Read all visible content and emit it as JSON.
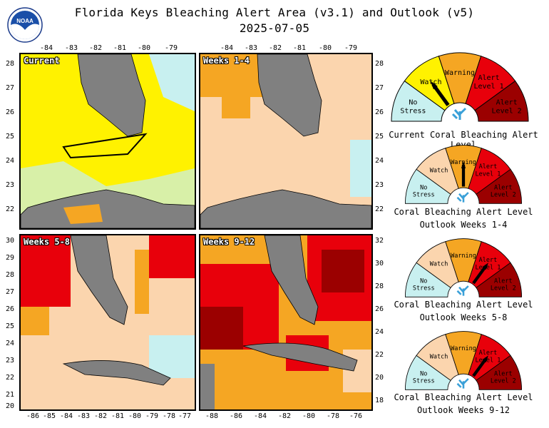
{
  "header": {
    "title": "Florida Keys Bleaching Alert Area (v3.1) and Outlook (v5)",
    "date": "2025-07-05",
    "logo_text": "NOAA"
  },
  "maps": {
    "current": {
      "label": "Current"
    },
    "w1_4": {
      "label": "Weeks 1-4"
    },
    "w5_8": {
      "label": "Weeks 5-8"
    },
    "w9_12": {
      "label": "Weeks 9-12"
    }
  },
  "axes": {
    "top_lon_ticks": [
      "-84",
      "-83",
      "-82",
      "-81",
      "-80",
      "-79"
    ],
    "left_lat_ticks": [
      "28",
      "27",
      "26",
      "25",
      "24",
      "23",
      "22"
    ],
    "right_lat_ticks": [
      "28",
      "27",
      "26",
      "25",
      "24",
      "23",
      "22"
    ],
    "left_lat_ticks_bottom": [
      "30",
      "29",
      "28",
      "27",
      "26",
      "25",
      "24",
      "23",
      "22",
      "21",
      "20"
    ],
    "right_lat_ticks_bottom": [
      "32",
      "30",
      "28",
      "26",
      "24",
      "22",
      "20",
      "18"
    ],
    "bottom_lon_left": [
      "-86",
      "-85",
      "-84",
      "-83",
      "-82",
      "-81",
      "-80",
      "-79",
      "-78",
      "-77"
    ],
    "bottom_lon_right": [
      "-88",
      "-86",
      "-84",
      "-82",
      "-80",
      "-78",
      "-76"
    ]
  },
  "gauge_labels": {
    "no_stress": [
      "No",
      "Stress"
    ],
    "watch": "Watch",
    "warning": "Warning",
    "alert1": [
      "Alert",
      "Level 1"
    ],
    "alert2": [
      "Alert",
      "Level 2"
    ]
  },
  "gauges": [
    {
      "caption1": "Current Coral Bleaching Alert Level",
      "caption2": "",
      "level": "Watch"
    },
    {
      "caption1": "Coral Bleaching Alert Level",
      "caption2": "Outlook Weeks 1-4",
      "level": "Warning"
    },
    {
      "caption1": "Coral Bleaching Alert Level",
      "caption2": "Outlook Weeks 5-8",
      "level": "Alert Level 1"
    },
    {
      "caption1": "Coral Bleaching Alert Level",
      "caption2": "Outlook Weeks 9-12",
      "level": "Alert Level 1"
    }
  ],
  "colors": {
    "no_stress": "#c8f0f0",
    "watch": "#fff200",
    "warning": "#f5a623",
    "alert1": "#e8000b",
    "alert2": "#9b0000",
    "outlook_nostress": "#fbd5ae",
    "land": "#808080"
  }
}
